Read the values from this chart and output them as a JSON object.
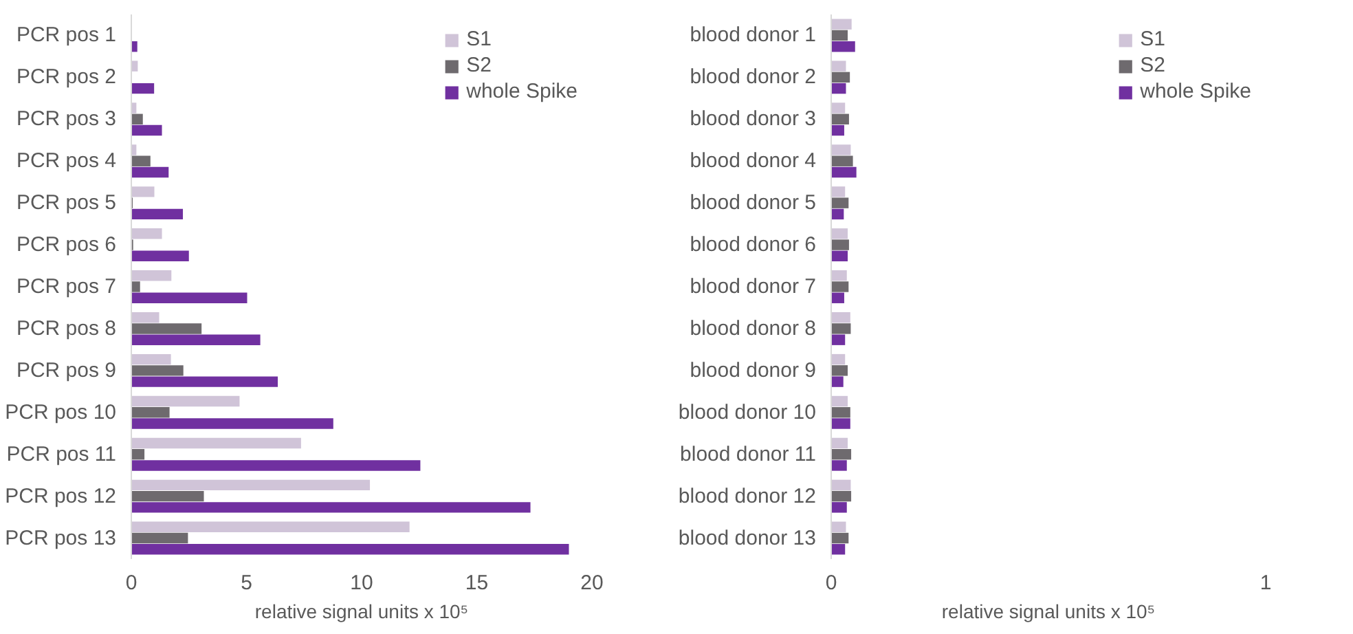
{
  "chart_data": [
    {
      "type": "bar",
      "orientation": "horizontal",
      "categories": [
        "PCR pos 1",
        "PCR pos 2",
        "PCR pos 3",
        "PCR pos 4",
        "PCR pos 5",
        "PCR pos 6",
        "PCR pos 7",
        "PCR pos 8",
        "PCR pos 9",
        "PCR pos 10",
        "PCR pos 11",
        "PCR pos 12",
        "PCR pos 13"
      ],
      "xlabel": "relative signal units x 10⁵",
      "xlim": [
        0,
        20
      ],
      "xticks": [
        0,
        5,
        10,
        15,
        20
      ],
      "legend": "top right",
      "series": [
        {
          "name": "S1",
          "color": "#d0c4d8",
          "values": [
            null,
            0.28,
            0.22,
            0.22,
            1.0,
            1.33,
            1.74,
            1.21,
            1.72,
            4.7,
            7.37,
            10.36,
            12.08
          ]
        },
        {
          "name": "S2",
          "color": "#6e6a6e",
          "values": [
            null,
            null,
            0.5,
            0.83,
            0.06,
            0.08,
            0.38,
            3.05,
            2.26,
            1.66,
            0.57,
            3.15,
            2.46
          ]
        },
        {
          "name": "whole Spike",
          "color": "#7030a0",
          "values": [
            0.26,
            0.99,
            1.33,
            1.62,
            2.24,
            2.5,
            5.03,
            5.6,
            6.36,
            8.77,
            12.55,
            17.33,
            19.0
          ]
        }
      ]
    },
    {
      "type": "bar",
      "orientation": "horizontal",
      "categories": [
        "blood donor 1",
        "blood donor 2",
        "blood donor 3",
        "blood donor 4",
        "blood donor 5",
        "blood donor 6",
        "blood donor 7",
        "blood donor 8",
        "blood donor 9",
        "blood donor 10",
        "blood donor 11",
        "blood donor 12",
        "blood donor 13"
      ],
      "xlabel": "relative signal units x 10⁵",
      "xlim": [
        0,
        1
      ],
      "xticks": [
        0,
        1
      ],
      "legend": "top right",
      "series": [
        {
          "name": "S1",
          "color": "#d0c4d8",
          "values": [
            0.047,
            0.034,
            0.032,
            0.045,
            0.032,
            0.038,
            0.036,
            0.044,
            0.032,
            0.038,
            0.038,
            0.045,
            0.034
          ]
        },
        {
          "name": "S2",
          "color": "#6e6a6e",
          "values": [
            0.038,
            0.043,
            0.041,
            0.05,
            0.04,
            0.041,
            0.04,
            0.045,
            0.038,
            0.044,
            0.046,
            0.046,
            0.04
          ]
        },
        {
          "name": "whole Spike",
          "color": "#7030a0",
          "values": [
            0.055,
            0.034,
            0.03,
            0.058,
            0.029,
            0.038,
            0.03,
            0.032,
            0.028,
            0.044,
            0.036,
            0.036,
            0.032
          ]
        }
      ]
    }
  ]
}
